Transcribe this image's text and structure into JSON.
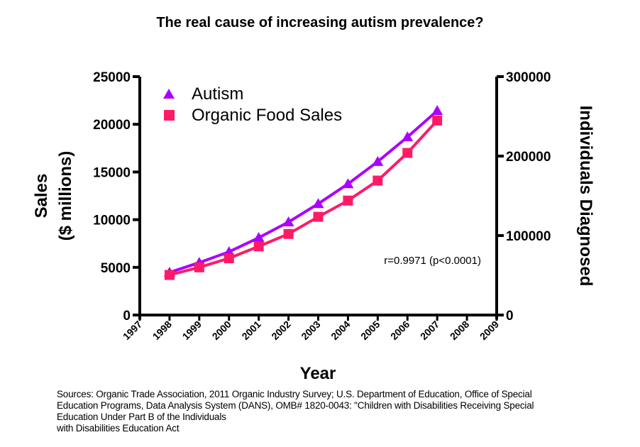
{
  "chart_data": {
    "type": "line",
    "title": "The real cause of increasing autism prevalence?",
    "xlabel": "Year",
    "ylabel_left": [
      "Sales",
      "($ millions)"
    ],
    "ylabel_right": "Individuals Diagnosed",
    "xlim": [
      1997,
      2009
    ],
    "ylim_left": [
      0,
      25000
    ],
    "ylim_right": [
      0,
      300000
    ],
    "x_ticks": [
      "1997",
      "1998",
      "1999",
      "2000",
      "2001",
      "2002",
      "2003",
      "2004",
      "2005",
      "2006",
      "2007",
      "2008",
      "2009"
    ],
    "y_ticks_left": [
      "0",
      "5000",
      "10000",
      "15000",
      "20000",
      "25000"
    ],
    "y_ticks_right": [
      "0",
      "100000",
      "200000",
      "300000"
    ],
    "grid": false,
    "legend_placement": "top-left",
    "annotation": "r=0.9971 (p<0.0001)",
    "x": [
      1998,
      1999,
      2000,
      2001,
      2002,
      2003,
      2004,
      2005,
      2006,
      2007
    ],
    "series": [
      {
        "name": "Autism",
        "axis": "right",
        "marker": "triangle",
        "color": "#aa00ff",
        "values": [
          53600,
          66000,
          79500,
          97300,
          117000,
          140000,
          165000,
          193000,
          224000,
          257000
        ]
      },
      {
        "name": "Organic Food Sales",
        "axis": "left",
        "marker": "square",
        "color": "#ff1a66",
        "values": [
          4200,
          5000,
          5950,
          7200,
          8500,
          10300,
          12000,
          14100,
          17000,
          20400
        ]
      }
    ]
  },
  "sources": [
    "Sources: Organic Trade Association,  2011 Organic Industry Survey; U.S. Department of Education, Office of Special",
    "Education Programs, Data Analysis System (DANS), OMB# 1820-0043: \"Children with Disabilities Receiving Special",
    "Education Under Part B of the Individuals",
    "with Disabilities Education Act"
  ]
}
